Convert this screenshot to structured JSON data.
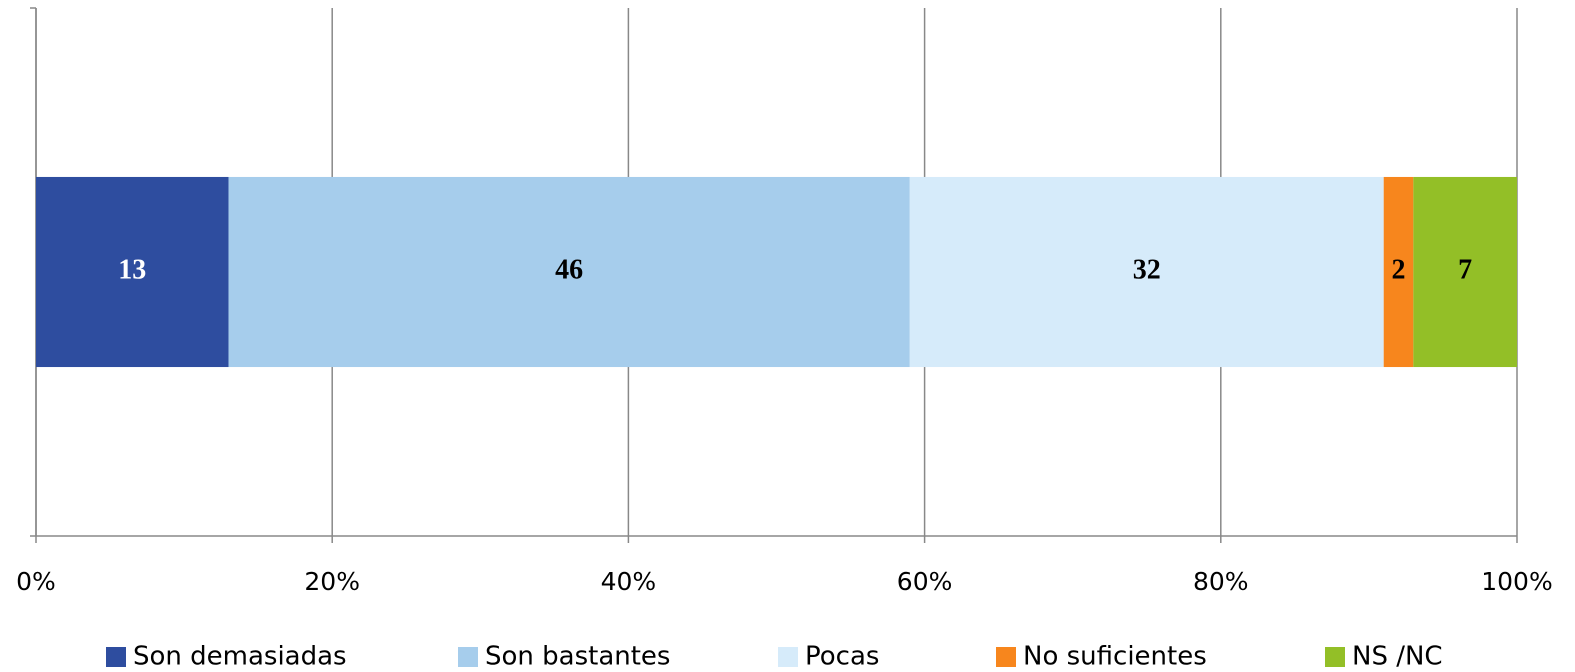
{
  "chart_data": {
    "type": "bar",
    "orientation": "horizontal",
    "stacked": true,
    "categories": [
      null
    ],
    "series": [
      {
        "name": "Son demasiadas",
        "color": "#2e4d9f",
        "values": [
          13
        ]
      },
      {
        "name": "Son bastantes",
        "color": "#a6cdec",
        "values": [
          46
        ]
      },
      {
        "name": "Pocas",
        "color": "#d6ebfa",
        "values": [
          32
        ]
      },
      {
        "name": "No suficientes",
        "color": "#f7861d",
        "values": [
          2
        ]
      },
      {
        "name": "NS /NC",
        "color": "#93bf27",
        "values": [
          7
        ]
      }
    ],
    "xlim": [
      0,
      100
    ],
    "xticks": [
      {
        "value": 0,
        "label": "0%"
      },
      {
        "value": 20,
        "label": "20%"
      },
      {
        "value": 40,
        "label": "40%"
      },
      {
        "value": 60,
        "label": "60%"
      },
      {
        "value": 80,
        "label": "80%"
      },
      {
        "value": 100,
        "label": "100%"
      }
    ],
    "grid": true,
    "legend": "bottom"
  }
}
